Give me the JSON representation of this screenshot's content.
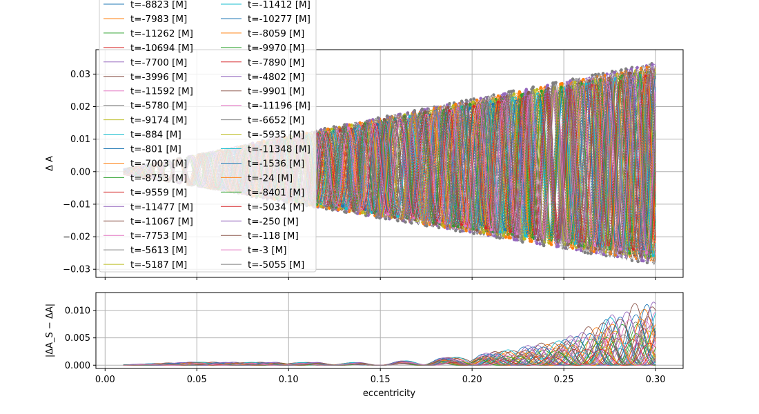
{
  "chart_data": [
    {
      "type": "line",
      "panel": "top",
      "xlabel": "",
      "ylabel": "Δ A",
      "xlim": [
        -0.005,
        0.315
      ],
      "ylim": [
        -0.0325,
        0.0375
      ],
      "yticks": [
        -0.03,
        -0.02,
        -0.01,
        0.0,
        0.01,
        0.02,
        0.03
      ],
      "ytick_labels": [
        "−0.03",
        "−0.02",
        "−0.01",
        "0.00",
        "0.01",
        "0.02",
        "0.03"
      ],
      "xticks": [
        0.0,
        0.05,
        0.1,
        0.15,
        0.2,
        0.25,
        0.3
      ],
      "grid": true,
      "legend_placement": "upper-left",
      "legend_columns": 2,
      "x_range": [
        0.01,
        0.3
      ],
      "envelope": {
        "x": [
          0.01,
          0.3
        ],
        "upper": [
          0.001,
          0.034
        ],
        "lower": [
          -0.001,
          -0.029
        ]
      },
      "series_style": "solid lines with dotted companion lines and dots at local extrema",
      "series": [
        {
          "name": "t=-8823 [M]"
        },
        {
          "name": "t=-7983 [M]"
        },
        {
          "name": "t=-11262 [M]"
        },
        {
          "name": "t=-10694 [M]"
        },
        {
          "name": "t=-7700 [M]"
        },
        {
          "name": "t=-3996 [M]"
        },
        {
          "name": "t=-11592 [M]"
        },
        {
          "name": "t=-5780 [M]"
        },
        {
          "name": "t=-9174 [M]"
        },
        {
          "name": "t=-884 [M]"
        },
        {
          "name": "t=-801 [M]"
        },
        {
          "name": "t=-7003 [M]"
        },
        {
          "name": "t=-8753 [M]"
        },
        {
          "name": "t=-9559 [M]"
        },
        {
          "name": "t=-11477 [M]"
        },
        {
          "name": "t=-11067 [M]"
        },
        {
          "name": "t=-7753 [M]"
        },
        {
          "name": "t=-5613 [M]"
        },
        {
          "name": "t=-5187 [M]"
        },
        {
          "name": "t=-11412 [M]"
        },
        {
          "name": "t=-10277 [M]"
        },
        {
          "name": "t=-8059 [M]"
        },
        {
          "name": "t=-9970 [M]"
        },
        {
          "name": "t=-7890 [M]"
        },
        {
          "name": "t=-4802 [M]"
        },
        {
          "name": "t=-9901 [M]"
        },
        {
          "name": "t=-11196 [M]"
        },
        {
          "name": "t=-6652 [M]"
        },
        {
          "name": "t=-5935 [M]"
        },
        {
          "name": "t=-11348 [M]"
        },
        {
          "name": "t=-1536 [M]"
        },
        {
          "name": "t=-24 [M]"
        },
        {
          "name": "t=-8401 [M]"
        },
        {
          "name": "t=-5034 [M]"
        },
        {
          "name": "t=-250 [M]"
        },
        {
          "name": "t=-118 [M]"
        },
        {
          "name": "t=-3 [M]"
        },
        {
          "name": "t=-5055 [M]"
        }
      ]
    },
    {
      "type": "line",
      "panel": "bottom",
      "xlabel": "eccentricity",
      "ylabel": "|ΔA_S − ΔA|",
      "xlim": [
        -0.005,
        0.315
      ],
      "ylim": [
        -0.0006,
        0.0133
      ],
      "yticks": [
        0.0,
        0.005,
        0.01
      ],
      "ytick_labels": [
        "0.000",
        "0.005",
        "0.010"
      ],
      "xticks": [
        0.0,
        0.05,
        0.1,
        0.15,
        0.2,
        0.25,
        0.3
      ],
      "xtick_labels": [
        "0.00",
        "0.05",
        "0.10",
        "0.15",
        "0.20",
        "0.25",
        "0.30"
      ],
      "grid": true,
      "x_range": [
        0.01,
        0.3
      ],
      "peak_envelope": {
        "x": [
          0.01,
          0.045,
          0.15,
          0.2,
          0.25,
          0.29
        ],
        "y": [
          0.0001,
          0.0006,
          0.0005,
          0.0018,
          0.005,
          0.012
        ]
      }
    }
  ]
}
